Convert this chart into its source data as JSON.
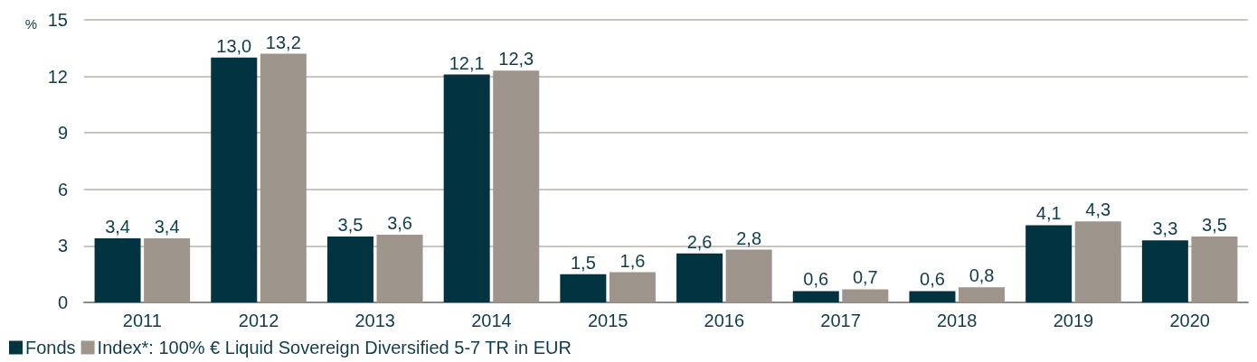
{
  "chart_data": {
    "type": "bar",
    "ylabel": "%",
    "categories": [
      "2011",
      "2012",
      "2013",
      "2014",
      "2015",
      "2016",
      "2017",
      "2018",
      "2019",
      "2020"
    ],
    "series": [
      {
        "name": "Fonds",
        "color": "#023341",
        "values": [
          3.4,
          13.0,
          3.5,
          12.1,
          1.5,
          2.6,
          0.6,
          0.6,
          4.1,
          3.3
        ],
        "value_labels": [
          "3,4",
          "13,0",
          "3,5",
          "12,1",
          "1,5",
          "2,6",
          "0,6",
          "0,6",
          "4,1",
          "3,3"
        ]
      },
      {
        "name": "Index*: 100% € Liquid Sovereign Diversified 5-7 TR in EUR",
        "color": "#9d948b",
        "values": [
          3.4,
          13.2,
          3.6,
          12.3,
          1.6,
          2.8,
          0.7,
          0.8,
          4.3,
          3.5
        ],
        "value_labels": [
          "3,4",
          "13,2",
          "3,6",
          "12,3",
          "1,6",
          "2,8",
          "0,7",
          "0,8",
          "4,3",
          "3,5"
        ]
      }
    ],
    "ylim": [
      0,
      15
    ],
    "yticks": [
      0,
      3,
      6,
      9,
      12,
      15
    ],
    "grid": "y",
    "legend": "bottom left"
  }
}
